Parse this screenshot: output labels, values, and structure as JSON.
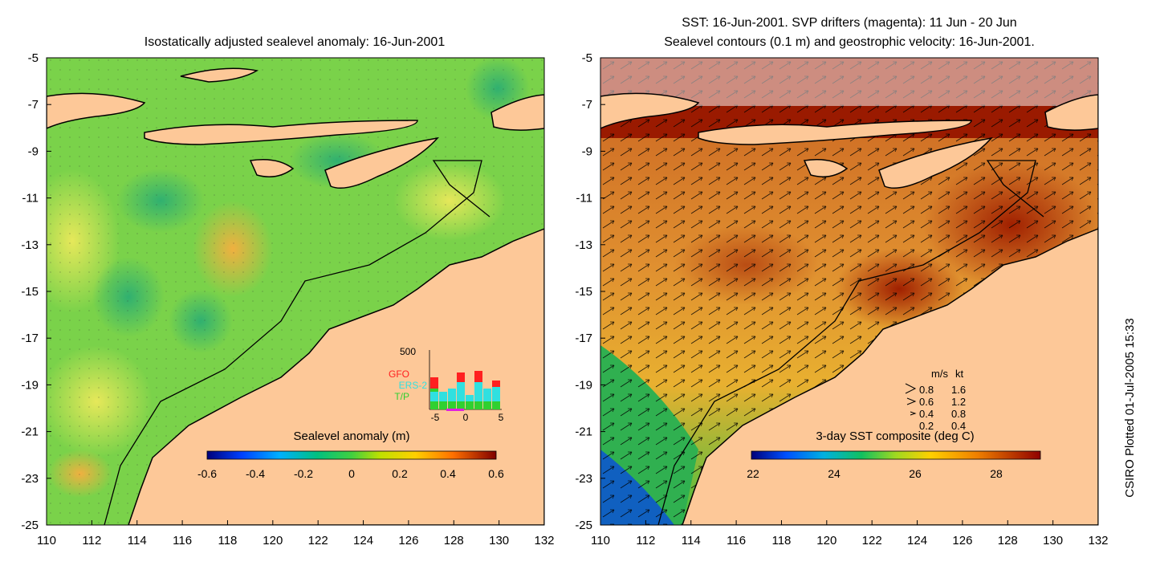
{
  "left_panel": {
    "title": "Isostatically adjusted sealevel anomaly: 16-Jun-2001",
    "colorbar_label": "Sealevel anomaly (m)",
    "colorbar_ticks": [
      "-0.6",
      "-0.4",
      "-0.2",
      "0",
      "0.2",
      "0.4",
      "0.6"
    ],
    "inset": {
      "y_max_label": "500",
      "legend": [
        {
          "name": "GFO",
          "color": "#ff2020"
        },
        {
          "name": "ERS-2",
          "color": "#30e0e0"
        },
        {
          "name": "T/P",
          "color": "#30d030"
        }
      ],
      "x_ticks": [
        "-5",
        "0",
        "5"
      ]
    }
  },
  "right_panel": {
    "title_line1": "SST: 16-Jun-2001. SVP drifters (magenta): 11 Jun - 20 Jun",
    "title_line2": "Sealevel contours (0.1 m) and geostrophic velocity: 16-Jun-2001.",
    "colorbar_label": "3-day SST composite (deg C)",
    "colorbar_ticks": [
      "22",
      "24",
      "26",
      "28"
    ],
    "speed_key": {
      "header_ms": "m/s",
      "header_kt": "kt",
      "rows": [
        {
          "ms": "0.8",
          "kt": "1.6"
        },
        {
          "ms": "0.6",
          "kt": "1.2"
        },
        {
          "ms": "0.4",
          "kt": "0.8"
        },
        {
          "ms": "0.2",
          "kt": "0.4"
        }
      ]
    }
  },
  "axes": {
    "x_ticks": [
      "110",
      "112",
      "114",
      "116",
      "118",
      "120",
      "122",
      "124",
      "126",
      "128",
      "130",
      "132"
    ],
    "y_ticks": [
      "-5",
      "-7",
      "-9",
      "-11",
      "-13",
      "-15",
      "-17",
      "-19",
      "-21",
      "-23",
      "-25"
    ]
  },
  "credit": "CSIRO Plotted 01-Jul-2005 15:33",
  "colors": {
    "land": "#fdc898",
    "outline": "#000000"
  }
}
